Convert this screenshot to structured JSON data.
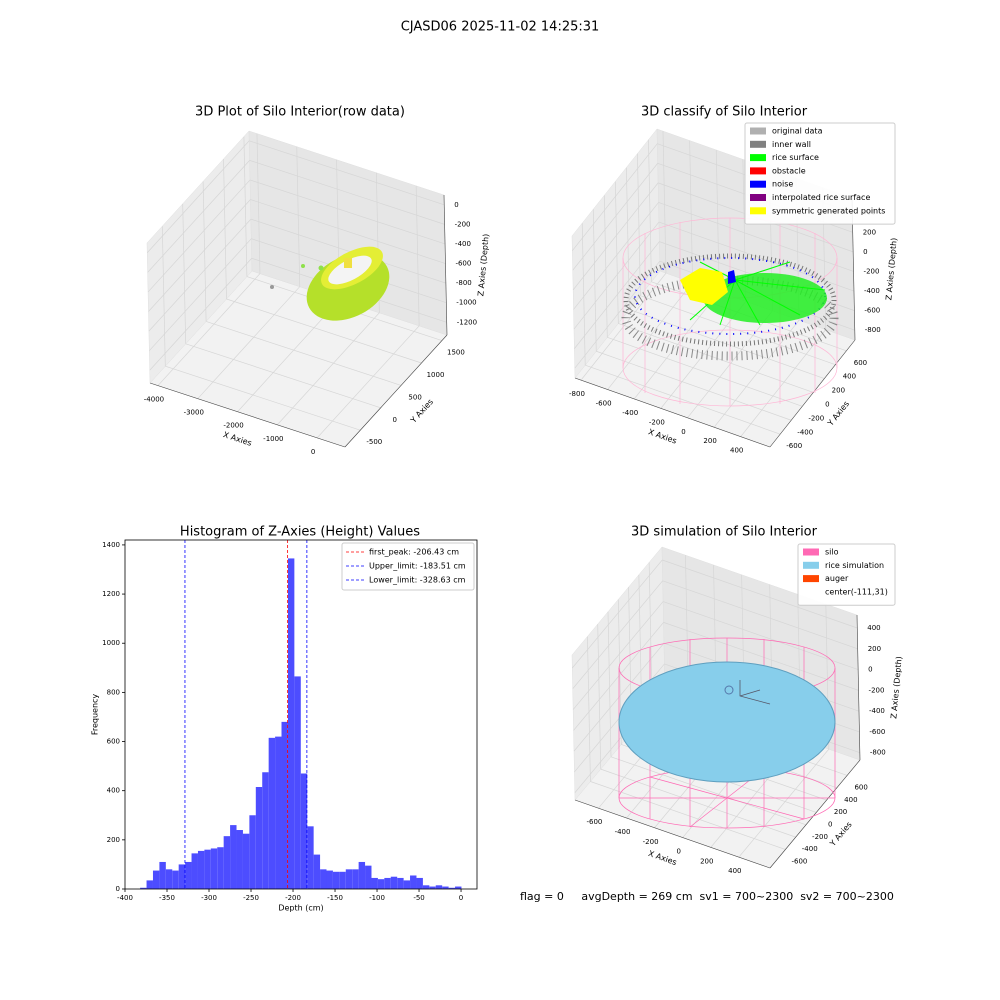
{
  "title": "CJASD06 2025-11-02 14:25:31",
  "chart_data": [
    {
      "type": "scatter3d",
      "title": "3D Plot of Silo Interior(row data)",
      "xlabel": "X Axies",
      "ylabel": "Y Axies",
      "zlabel": "Z Axies (Depth)",
      "xlim": [
        -4200,
        700
      ],
      "ylim": [
        -875,
        1625
      ],
      "zlim": [
        -1330,
        100
      ],
      "xticks": [
        -4000,
        -3000,
        -2000,
        -1000,
        0
      ],
      "yticks": [
        -500,
        0,
        500,
        1000,
        1500
      ],
      "zticks": [
        0,
        -200,
        -400,
        -600,
        -800,
        -1000,
        -1200
      ]
    },
    {
      "type": "scatter3d",
      "title": "3D classify of Silo Interior",
      "xlabel": "X Axies",
      "ylabel": "Y Axies",
      "zlabel": "Z Axies (Depth)",
      "xlim": [
        -845,
        620
      ],
      "ylim": [
        -785,
        755
      ],
      "zlim": [
        -900,
        550
      ],
      "xticks": [
        -800,
        -600,
        -400,
        -200,
        0,
        200,
        400
      ],
      "yticks": [
        -600,
        -400,
        -200,
        0,
        200,
        400,
        600
      ],
      "zticks": [
        400,
        200,
        0,
        -200,
        -400,
        -600,
        -800
      ],
      "legend": [
        {
          "name": "original data",
          "color": "#b0b0b0"
        },
        {
          "name": "inner wall",
          "color": "#808080"
        },
        {
          "name": "rice surface",
          "color": "#00ff00"
        },
        {
          "name": "obstacle",
          "color": "#ff0000"
        },
        {
          "name": "noise",
          "color": "#0000ff"
        },
        {
          "name": "interpolated rice surface",
          "color": "#800080"
        },
        {
          "name": "symmetric generated points",
          "color": "#ffff00"
        }
      ]
    },
    {
      "type": "histogram",
      "title": "Histogram of Z-Axies (Height) Values",
      "xlabel": "Depth (cm)",
      "ylabel": "Frequency",
      "color": "#4d4dff",
      "xlim": [
        -400,
        19
      ],
      "ylim": [
        0,
        1420
      ],
      "xticks": [
        -400,
        -350,
        -300,
        -250,
        -200,
        -150,
        -100,
        -50,
        0
      ],
      "yticks": [
        0,
        200,
        400,
        600,
        800,
        1000,
        1200,
        1400
      ],
      "bins": [
        -382,
        -374.35,
        -366.7,
        -359.05,
        -351.4,
        -343.75,
        -336.1,
        -328.45,
        -320.8,
        -313.15,
        -305.5,
        -297.85,
        -290.2,
        -282.55,
        -274.9,
        -267.25,
        -259.6,
        -251.95,
        -244.3,
        -236.65,
        -229,
        -221.35,
        -213.7,
        -206.05,
        -198.4,
        -190.75,
        -183.1,
        -175.45,
        -167.8,
        -160.15,
        -152.5,
        -144.85,
        -137.2,
        -129.55,
        -121.9,
        -114.25,
        -106.6,
        -98.95,
        -91.3,
        -83.65,
        -76,
        -68.35,
        -60.7,
        -53.05,
        -45.4,
        -37.75,
        -30.1,
        -22.45,
        -14.8,
        -7.15,
        0.5
      ],
      "counts": [
        5,
        35,
        75,
        110,
        80,
        75,
        100,
        110,
        145,
        155,
        160,
        165,
        170,
        215,
        260,
        240,
        225,
        300,
        415,
        475,
        615,
        620,
        680,
        1345,
        865,
        470,
        255,
        140,
        80,
        75,
        70,
        70,
        80,
        80,
        110,
        95,
        45,
        40,
        45,
        50,
        45,
        35,
        55,
        45,
        15,
        10,
        15,
        10,
        5,
        10
      ],
      "vlines": [
        {
          "name": "first_peak: -206.43 cm",
          "value": -206.43,
          "color": "#ff0000"
        },
        {
          "name": "Upper_limit: -183.51 cm",
          "value": -183.51,
          "color": "#0000ff"
        },
        {
          "name": "Lower_limit: -328.63 cm",
          "value": -328.63,
          "color": "#0000ff"
        }
      ]
    },
    {
      "type": "surface3d",
      "title": "3D simulation of Silo Interior",
      "xlabel": "X Axies",
      "ylabel": "Y Axies",
      "zlabel": "Z Axies (Depth)",
      "xlim": [
        -767,
        622
      ],
      "ylim": [
        -900,
        850
      ],
      "zlim": [
        -870,
        525
      ],
      "xticks": [
        -600,
        -400,
        -200,
        0,
        200,
        400
      ],
      "yticks": [
        -600,
        -400,
        -200,
        0,
        200,
        400,
        600
      ],
      "zticks": [
        400,
        200,
        0,
        -200,
        -400,
        -600,
        -800
      ],
      "legend": [
        {
          "name": "silo",
          "color": "#ff69b4"
        },
        {
          "name": "rice simulation",
          "color": "#87ceeb"
        },
        {
          "name": "auger",
          "color": "#ff4500"
        },
        {
          "name": "center(-111,31)",
          "color": "#ffffff"
        }
      ]
    }
  ],
  "footer": "flag = 0     avgDepth = 269 cm  sv1 = 700~2300  sv2 = 700~2300"
}
